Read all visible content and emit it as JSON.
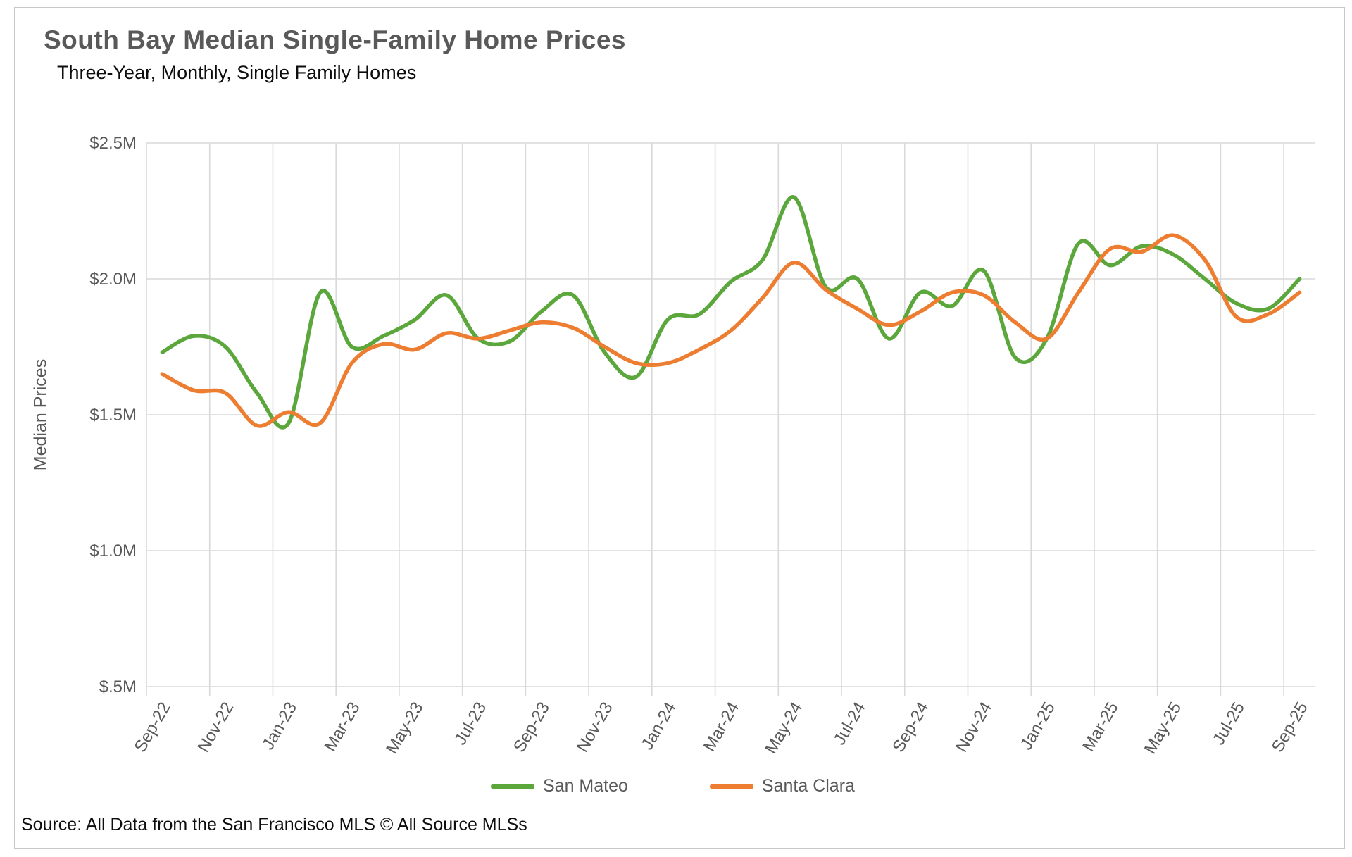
{
  "title": "South Bay Median Single-Family Home Prices",
  "subtitle": "Three-Year, Monthly, Single Family Homes",
  "source_note": "Source: All Data from the San Francisco MLS © All Source MLSs",
  "colors": {
    "san_mateo": "#5BA73C",
    "santa_clara": "#ED7D31",
    "gridline": "#d9d9d9",
    "axis_text": "#595959",
    "title_text": "#595959",
    "frame_border": "#c8c8c8"
  },
  "legend": {
    "items": [
      {
        "label": "San Mateo",
        "color": "#5BA73C"
      },
      {
        "label": "Santa Clara",
        "color": "#ED7D31"
      }
    ]
  },
  "chart_data": {
    "type": "line",
    "smooth": true,
    "title": "South Bay Median Single-Family Home Prices",
    "subtitle": "Three-Year, Monthly, Single Family Homes",
    "xlabel": "",
    "ylabel": "Median Prices",
    "ylim": [
      0.5,
      2.5
    ],
    "grid": true,
    "legend_position": "bottom",
    "x_label_interval": 2,
    "y_ticks": [
      {
        "value": 2.5,
        "label": "$2.5M"
      },
      {
        "value": 2.0,
        "label": "$2.0M"
      },
      {
        "value": 1.5,
        "label": "$1.5M"
      },
      {
        "value": 1.0,
        "label": "$1.0M"
      },
      {
        "value": 0.5,
        "label": "$.5M"
      }
    ],
    "x": [
      "Sep-22",
      "Oct-22",
      "Nov-22",
      "Dec-22",
      "Jan-23",
      "Feb-23",
      "Mar-23",
      "Apr-23",
      "May-23",
      "Jun-23",
      "Jul-23",
      "Aug-23",
      "Sep-23",
      "Oct-23",
      "Nov-23",
      "Dec-23",
      "Jan-24",
      "Feb-24",
      "Mar-24",
      "Apr-24",
      "May-24",
      "Jun-24",
      "Jul-24",
      "Aug-24",
      "Sep-24",
      "Oct-24",
      "Nov-24",
      "Dec-24",
      "Jan-25",
      "Feb-25",
      "Mar-25",
      "Apr-25",
      "May-25",
      "Jun-25",
      "Jul-25",
      "Aug-25",
      "Sep-25"
    ],
    "series": [
      {
        "name": "San Mateo",
        "color": "#5BA73C",
        "values": [
          1.73,
          1.79,
          1.75,
          1.58,
          1.47,
          1.95,
          1.75,
          1.79,
          1.85,
          1.94,
          1.78,
          1.77,
          1.88,
          1.94,
          1.73,
          1.64,
          1.85,
          1.87,
          1.99,
          2.07,
          2.3,
          1.97,
          2.0,
          1.78,
          1.95,
          1.9,
          2.03,
          1.71,
          1.78,
          2.13,
          2.05,
          2.12,
          2.09,
          2.0,
          1.91,
          1.89,
          2.0
        ]
      },
      {
        "name": "Santa Clara",
        "color": "#ED7D31",
        "values": [
          1.65,
          1.59,
          1.58,
          1.46,
          1.51,
          1.47,
          1.69,
          1.76,
          1.74,
          1.8,
          1.78,
          1.81,
          1.84,
          1.82,
          1.75,
          1.69,
          1.69,
          1.74,
          1.81,
          1.93,
          2.06,
          1.96,
          1.89,
          1.83,
          1.88,
          1.95,
          1.94,
          1.84,
          1.78,
          1.95,
          2.11,
          2.1,
          2.16,
          2.07,
          1.86,
          1.87,
          1.95
        ]
      }
    ]
  }
}
